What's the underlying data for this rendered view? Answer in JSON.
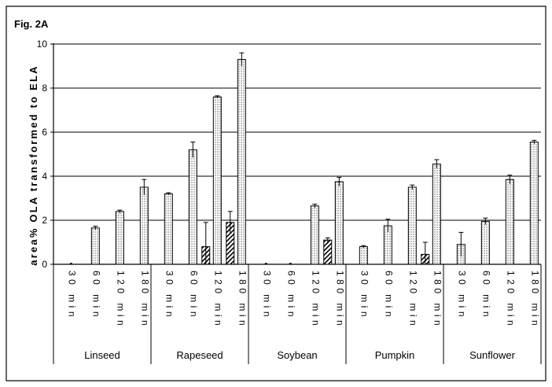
{
  "figure_label": "Fig. 2A",
  "chart_data": {
    "type": "bar",
    "title": "",
    "xlabel": "",
    "ylabel": "area% OLA transformed to ELA",
    "ylim": [
      0,
      10
    ],
    "yticks": [
      "0",
      "2",
      "4",
      "6",
      "8",
      "10"
    ],
    "grid": true,
    "legend": "none",
    "groups": [
      "Linseed",
      "Rapeseed",
      "Soybean",
      "Pumpkin",
      "Sunflower"
    ],
    "time_labels": [
      "30 min",
      "60 min",
      "120 min",
      "180 min"
    ],
    "series": [
      {
        "pattern": "dotted",
        "values": [
          [
            0,
            1.65,
            2.4,
            3.5
          ],
          [
            3.2,
            5.2,
            7.6,
            9.3
          ],
          [
            0,
            0,
            2.65,
            3.75
          ],
          [
            0.8,
            1.75,
            3.5,
            4.55
          ],
          [
            0.9,
            1.95,
            3.85,
            5.55
          ]
        ],
        "errors": [
          [
            0,
            0.08,
            0.06,
            0.35
          ],
          [
            0.05,
            0.35,
            0.05,
            0.3
          ],
          [
            0,
            0,
            0.08,
            0.2
          ],
          [
            0.05,
            0.3,
            0.1,
            0.2
          ],
          [
            0.55,
            0.15,
            0.2,
            0.08
          ]
        ]
      },
      {
        "pattern": "hatched",
        "values": [
          [
            0,
            0,
            0,
            0
          ],
          [
            0,
            0,
            0.8,
            1.9
          ],
          [
            0,
            0,
            0,
            1.1
          ],
          [
            0,
            0,
            0,
            0.45
          ],
          [
            0,
            0,
            0,
            0
          ]
        ],
        "errors": [
          [
            0,
            0,
            0,
            0
          ],
          [
            0,
            0,
            1.1,
            0.5
          ],
          [
            0,
            0,
            0,
            0.1
          ],
          [
            0,
            0,
            0,
            0.55
          ],
          [
            0,
            0,
            0,
            0
          ]
        ]
      }
    ]
  }
}
